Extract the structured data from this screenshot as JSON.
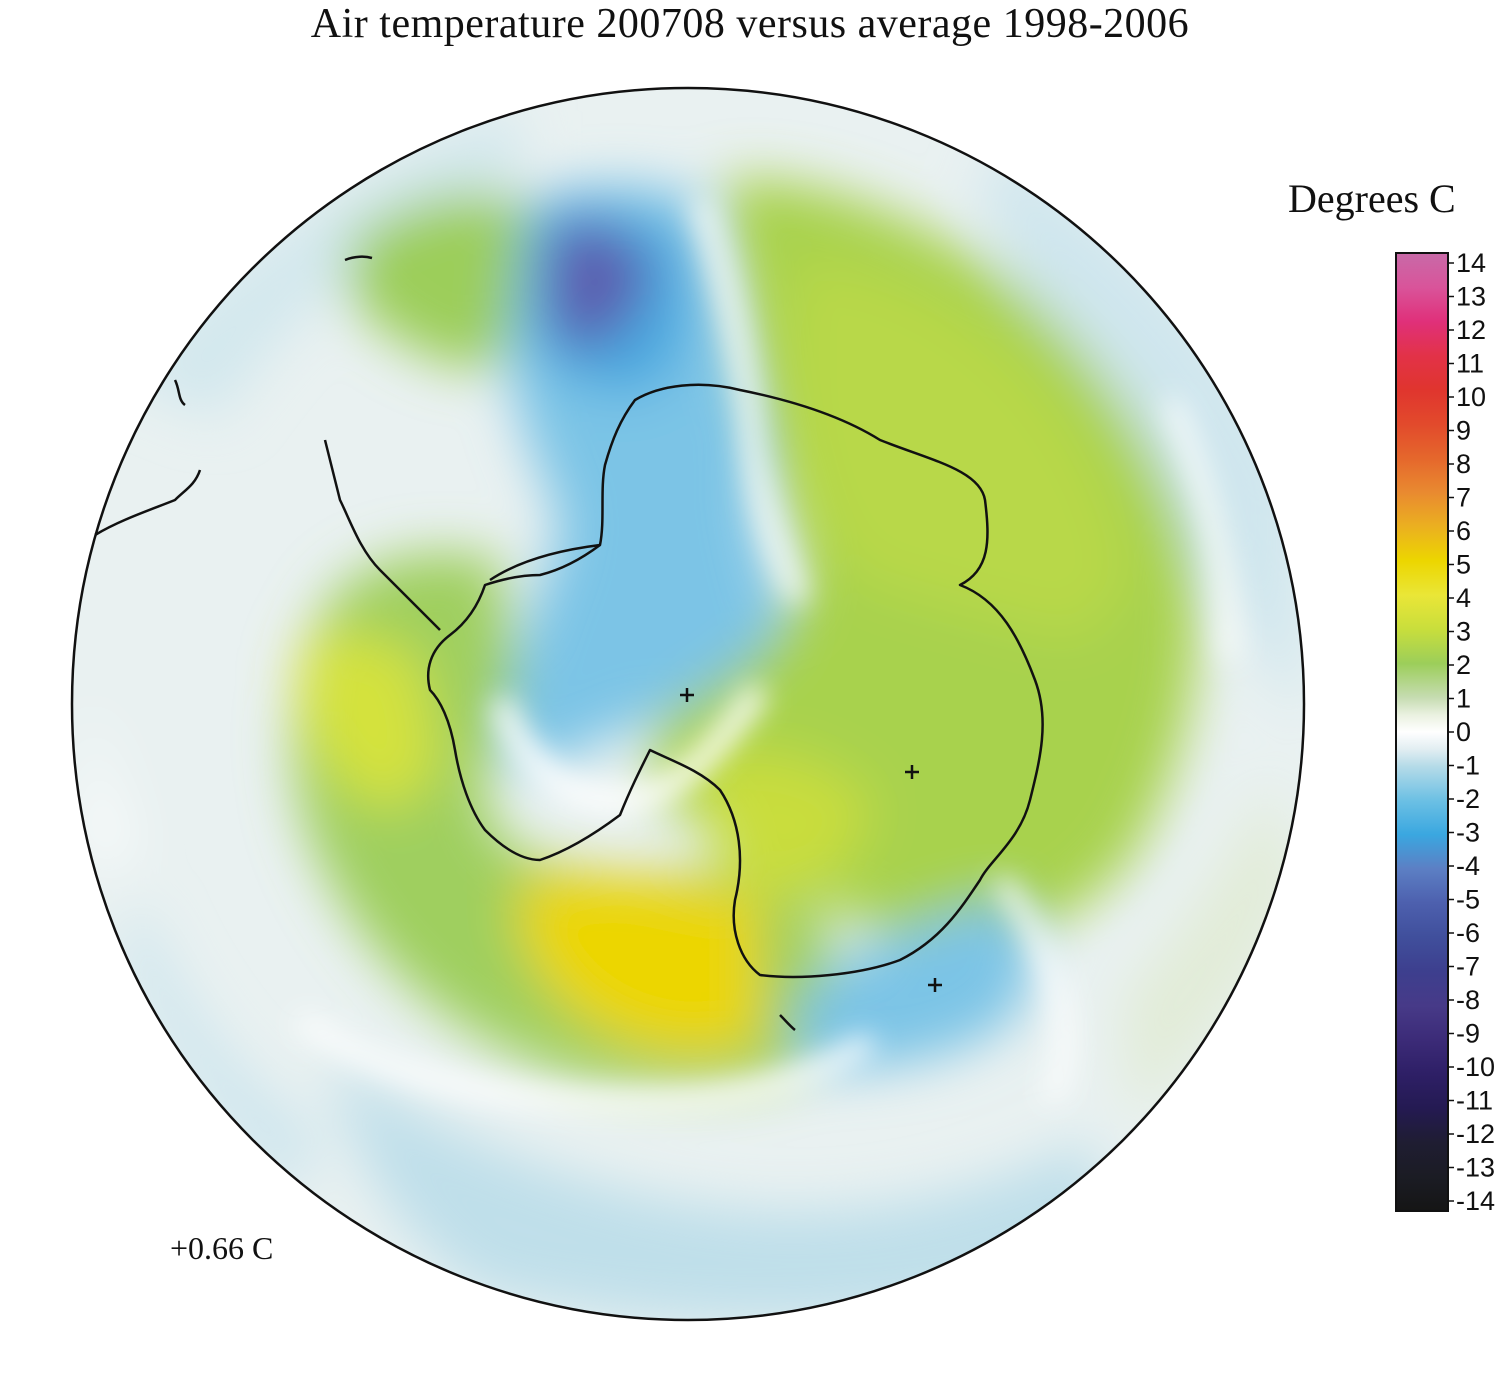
{
  "title": "Air temperature 200708 versus average 1998-2006",
  "legend": {
    "unit_label": "Degrees C",
    "ticks": [
      "14",
      "13",
      "12",
      "11",
      "10",
      "9",
      "8",
      "7",
      "6",
      "5",
      "4",
      "3",
      "2",
      "1",
      "0",
      "-1",
      "-2",
      "-3",
      "-4",
      "-5",
      "-6",
      "-7",
      "-8",
      "-9",
      "-10",
      "-11",
      "-12",
      "-13",
      "-14"
    ],
    "range": [
      -14,
      14
    ],
    "stops": [
      {
        "v": 14,
        "color": "#c86aa8"
      },
      {
        "v": 13,
        "color": "#d9549a"
      },
      {
        "v": 12,
        "color": "#e0307a"
      },
      {
        "v": 11,
        "color": "#e23248"
      },
      {
        "v": 10,
        "color": "#e0352e"
      },
      {
        "v": 9,
        "color": "#e24a2c"
      },
      {
        "v": 8,
        "color": "#e5672c"
      },
      {
        "v": 7,
        "color": "#e98a30"
      },
      {
        "v": 6,
        "color": "#ebb020"
      },
      {
        "v": 5,
        "color": "#ecd600"
      },
      {
        "v": 4,
        "color": "#eae637"
      },
      {
        "v": 3,
        "color": "#c8de3c"
      },
      {
        "v": 2,
        "color": "#9cce5a"
      },
      {
        "v": 1,
        "color": "#c6dcb2"
      },
      {
        "v": 0.5,
        "color": "#eaf1e0"
      },
      {
        "v": 0,
        "color": "#ffffff"
      },
      {
        "v": -0.5,
        "color": "#e2eef2"
      },
      {
        "v": -1,
        "color": "#b5dbe8"
      },
      {
        "v": -2,
        "color": "#6cc0e4"
      },
      {
        "v": -3,
        "color": "#3aa7e0"
      },
      {
        "v": -4,
        "color": "#5c7fc4"
      },
      {
        "v": -5,
        "color": "#4d60ae"
      },
      {
        "v": -6,
        "color": "#404f9c"
      },
      {
        "v": -7,
        "color": "#3d3f8e"
      },
      {
        "v": -8,
        "color": "#473a88"
      },
      {
        "v": -9,
        "color": "#3c2b78"
      },
      {
        "v": -10,
        "color": "#2e1f66"
      },
      {
        "v": -11,
        "color": "#241a52"
      },
      {
        "v": -12,
        "color": "#1f1d32"
      },
      {
        "v": -13,
        "color": "#1b1c24"
      },
      {
        "v": -14,
        "color": "#151515"
      }
    ]
  },
  "map": {
    "projection": "south polar stereographic",
    "region": "Antarctica and Southern Ocean",
    "background_color": "#ffffff",
    "coastline_color": "#111111"
  },
  "global_mean": "+0.66 C",
  "icons": [
    "pole-marker-icon",
    "station-marker-icon"
  ]
}
